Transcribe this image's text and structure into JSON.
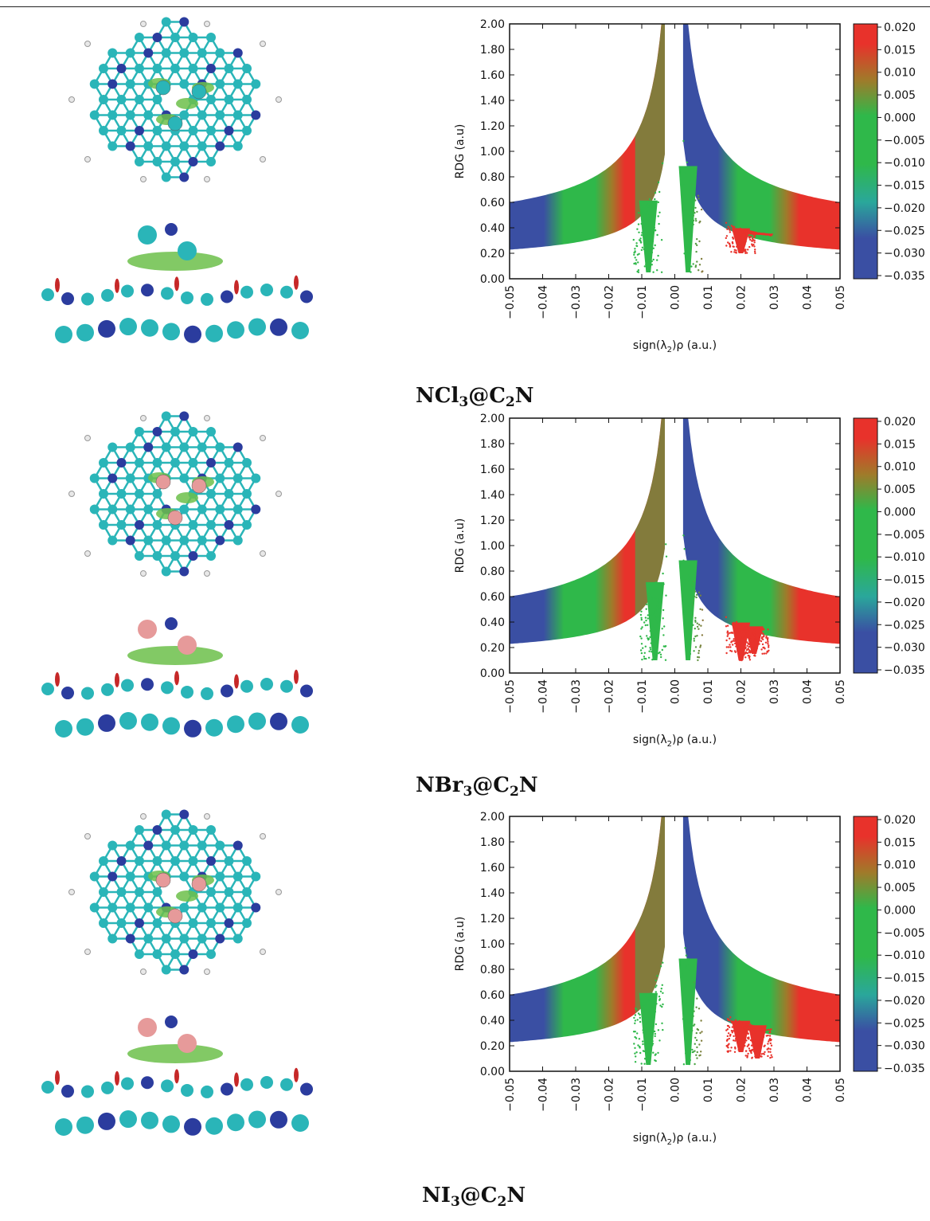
{
  "panels": [
    {
      "caption": {
        "pre": "NCl",
        "sub1": "3",
        "mid": "@C",
        "sub2": "2",
        "post": "N"
      },
      "halogen_color": "#2ab5b8",
      "mol_icon": "ncl3-on-c2n-molecule-icon"
    },
    {
      "caption": {
        "pre": "NBr",
        "sub1": "3",
        "mid": "@C",
        "sub2": "2",
        "post": "N"
      },
      "halogen_color": "#e69a9a",
      "mol_icon": "nbr3-on-c2n-molecule-icon"
    },
    {
      "caption": {
        "pre": "NI",
        "sub1": "3",
        "mid": "@C",
        "sub2": "2",
        "post": "N"
      },
      "halogen_color": "#e69a9a",
      "mol_icon": "ni3-on-c2n-molecule-icon"
    }
  ],
  "chart_data": [
    {
      "type": "scatter",
      "ylabel": "RDG (a.u)",
      "xlabel_parts": {
        "pre": "sign(λ",
        "sub": "2",
        "post": ")ρ (a.u.)"
      },
      "xlim": [
        -0.05,
        0.05
      ],
      "ylim": [
        0,
        2
      ],
      "x_ticks": [
        "-0.05",
        "-0.04",
        "-0.03",
        "-0.02",
        "-0.01",
        "0.00",
        "0.01",
        "0.02",
        "0.03",
        "0.04",
        "0.05"
      ],
      "y_ticks": [
        "0.00",
        "0.20",
        "0.40",
        "0.60",
        "0.80",
        "1.00",
        "1.20",
        "1.40",
        "1.60",
        "1.80",
        "2.00"
      ],
      "colorbar_ticks": [
        "0.020",
        "0.015",
        "0.010",
        "0.005",
        "0.000",
        "-0.005",
        "-0.010",
        "-0.015",
        "-0.020",
        "-0.025",
        "-0.030",
        "-0.035"
      ],
      "colorbar_colors": [
        "#e8322b",
        "#2fb84a",
        "#3a4fa3"
      ],
      "spikes": [
        {
          "x": -0.008,
          "ymin": 0.05
        },
        {
          "x": 0.004,
          "ymin": 0.05
        },
        {
          "x": 0.02,
          "ymin": 0.2
        },
        {
          "x": 0.025,
          "ymin": 0.35
        }
      ]
    },
    {
      "type": "scatter",
      "ylabel": "RDG (a.u)",
      "xlabel_parts": {
        "pre": "sign(λ",
        "sub": "2",
        "post": ")ρ (a.u.)"
      },
      "xlim": [
        -0.05,
        0.05
      ],
      "ylim": [
        0,
        2
      ],
      "x_ticks": [
        "-0.05",
        "-0.04",
        "-0.03",
        "-0.02",
        "-0.01",
        "0.00",
        "0.01",
        "0.02",
        "0.03",
        "0.04",
        "0.05"
      ],
      "y_ticks": [
        "0.00",
        "0.20",
        "0.40",
        "0.60",
        "0.80",
        "1.00",
        "1.20",
        "1.40",
        "1.60",
        "1.80",
        "2.00"
      ],
      "colorbar_ticks": [
        "0.020",
        "0.015",
        "0.010",
        "0.005",
        "0.000",
        "-0.005",
        "-0.010",
        "-0.015",
        "-0.020",
        "-0.025",
        "-0.030",
        "-0.035"
      ],
      "colorbar_colors": [
        "#e8322b",
        "#2fb84a",
        "#3a4fa3"
      ],
      "spikes": [
        {
          "x": -0.006,
          "ymin": 0.1
        },
        {
          "x": 0.004,
          "ymin": 0.1
        },
        {
          "x": 0.02,
          "ymin": 0.1
        },
        {
          "x": 0.024,
          "ymin": 0.15
        }
      ]
    },
    {
      "type": "scatter",
      "ylabel": "RDG (a.u)",
      "xlabel_parts": {
        "pre": "sign(λ",
        "sub": "2",
        "post": ")ρ (a.u.)"
      },
      "xlim": [
        -0.05,
        0.05
      ],
      "ylim": [
        0,
        2
      ],
      "x_ticks": [
        "-0.05",
        "-0.04",
        "-0.03",
        "-0.02",
        "-0.01",
        "0.00",
        "0.01",
        "0.02",
        "0.03",
        "0.04",
        "0.05"
      ],
      "y_ticks": [
        "0.00",
        "0.20",
        "0.40",
        "0.60",
        "0.80",
        "1.00",
        "1.20",
        "1.40",
        "1.60",
        "1.80",
        "2.00"
      ],
      "colorbar_ticks": [
        "0.020",
        "0.015",
        "0.010",
        "0.005",
        "0.000",
        "-0.005",
        "-0.010",
        "-0.015",
        "-0.020",
        "-0.025",
        "-0.030",
        "-0.035"
      ],
      "colorbar_colors": [
        "#e8322b",
        "#2fb84a",
        "#3a4fa3"
      ],
      "spikes": [
        {
          "x": -0.008,
          "ymin": 0.05
        },
        {
          "x": 0.004,
          "ymin": 0.05
        },
        {
          "x": 0.02,
          "ymin": 0.15
        },
        {
          "x": 0.025,
          "ymin": 0.1
        }
      ]
    }
  ]
}
